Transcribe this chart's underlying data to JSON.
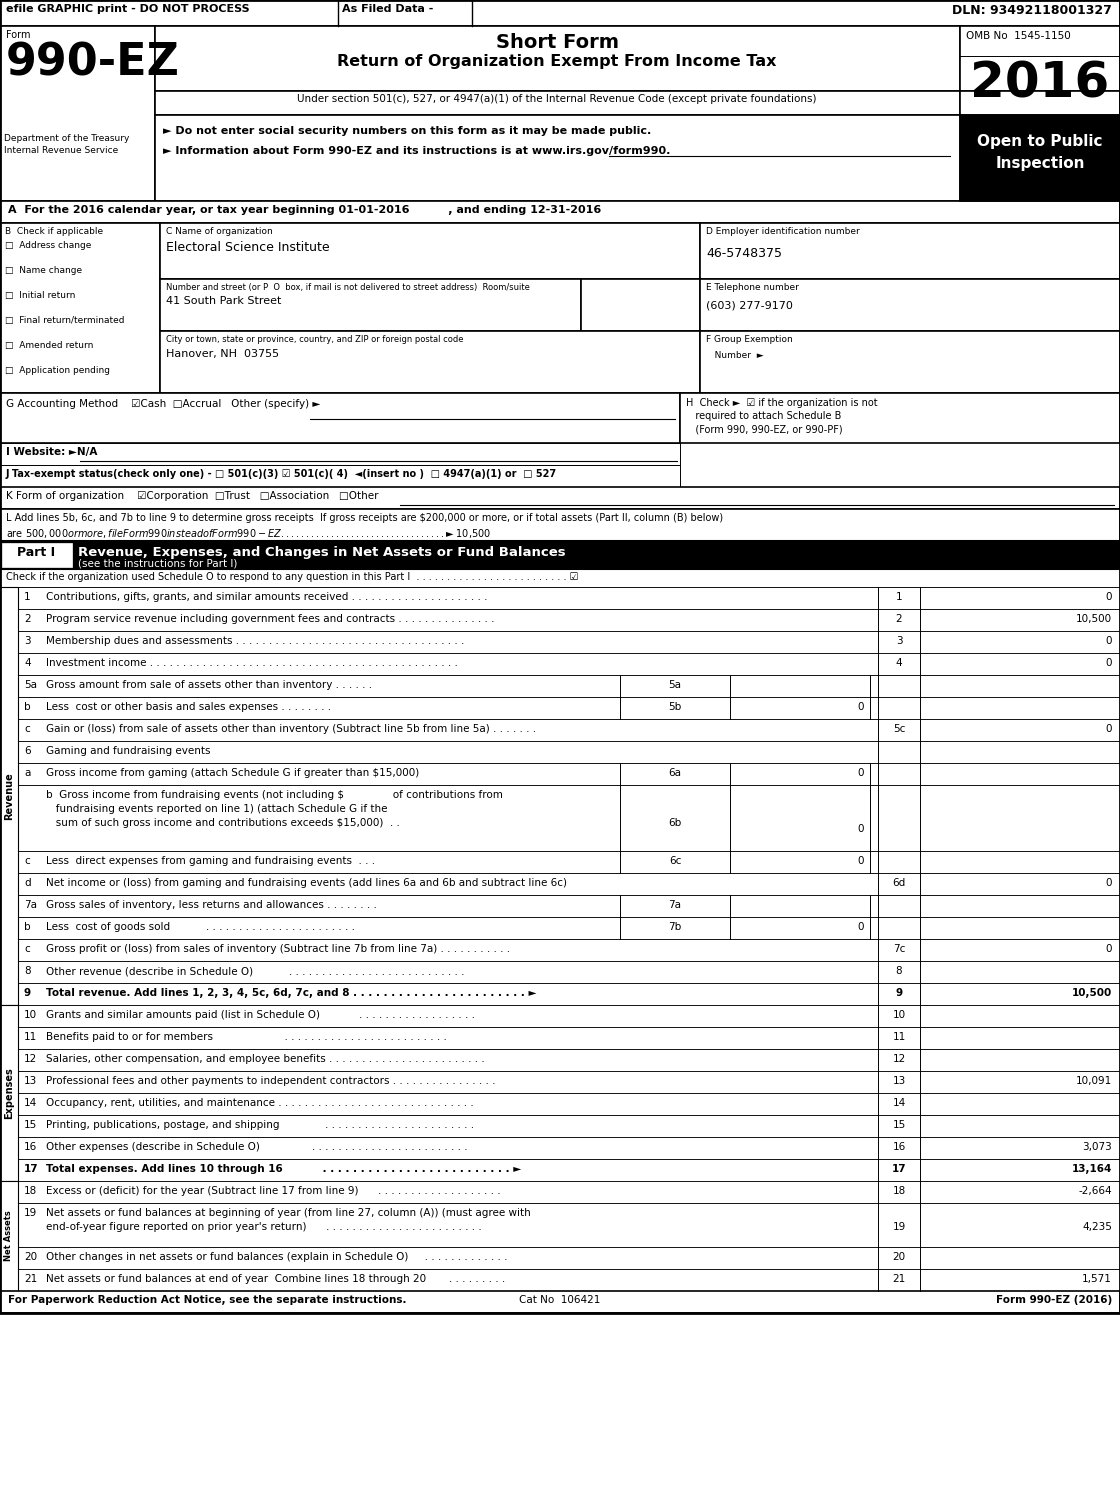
{
  "title": "Short Form",
  "subtitle": "Return of Organization Exempt From Income Tax",
  "form_number": "990-EZ",
  "form_year": "2016",
  "omb": "OMB No  1545-1150",
  "dln": "DLN: 93492118001327",
  "efile_header": "efile GRAPHIC print - DO NOT PROCESS",
  "as_filed": "As Filed Data -",
  "section_501": "Under section 501(c), 527, or 4947(a)(1) of the Internal Revenue Code (except private foundations)",
  "note1": "► Do not enter social security numbers on this form as it may be made public.",
  "note2": "► Information about Form 990-EZ and its instructions is at www.irs.gov/form990.",
  "open_to_public": "Open to Public\nInspection",
  "dept1": "Department of the Treasury",
  "dept2": "Internal Revenue Service",
  "line_a": "A  For the 2016 calendar year, or tax year beginning 01-01-2016          , and ending 12-31-2016",
  "checkboxes_b": [
    "Address change",
    "Name change",
    "Initial return",
    "Final return/terminated",
    "Amended return",
    "Application pending"
  ],
  "org_name": "Electoral Science Institute",
  "street_label": "Number and street (or P  O  box, if mail is not delivered to street address)  Room/suite",
  "street": "41 South Park Street",
  "city_label": "City or town, state or province, country, and ZIP or foreign postal code",
  "city": "Hanover, NH  03755",
  "ein": "46-5748375",
  "phone": "(603) 277-9170",
  "footer": "For Paperwork Reduction Act Notice, see the separate instructions.",
  "footer_cat": "Cat No  106421",
  "footer_form": "Form 990-EZ (2016)"
}
